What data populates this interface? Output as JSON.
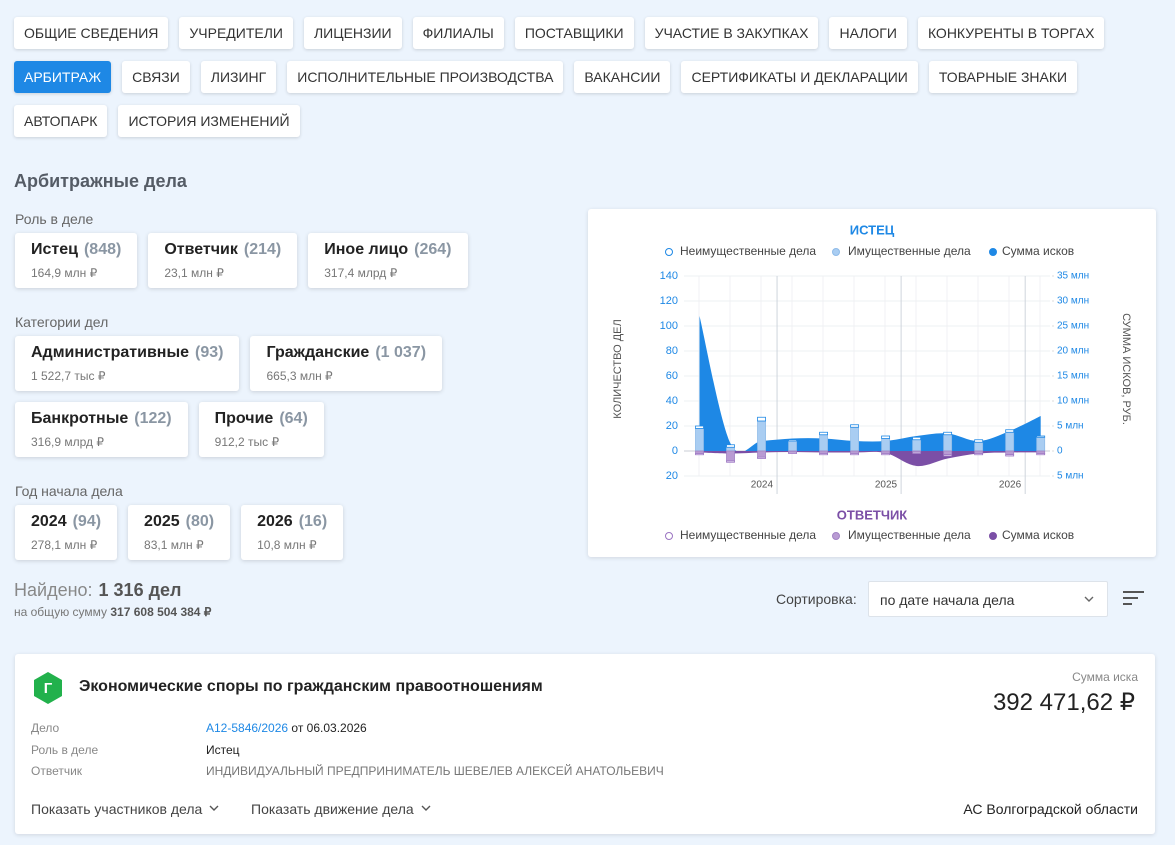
{
  "tabs": [
    "ОБЩИЕ СВЕДЕНИЯ",
    "УЧРЕДИТЕЛИ",
    "ЛИЦЕНЗИИ",
    "ФИЛИАЛЫ",
    "ПОСТАВЩИКИ",
    "УЧАСТИЕ В ЗАКУПКАХ",
    "НАЛОГИ",
    "КОНКУРЕНТЫ В ТОРГАХ",
    "АРБИТРАЖ",
    "СВЯЗИ",
    "ЛИЗИНГ",
    "ИСПОЛНИТЕЛЬНЫЕ ПРОИЗВОДСТВА",
    "ВАКАНСИИ",
    "СЕРТИФИКАТЫ И ДЕКЛАРАЦИИ",
    "ТОВАРНЫЕ ЗНАКИ",
    "АВТОПАРК",
    "ИСТОРИЯ ИЗМЕНЕНИЙ"
  ],
  "active_tab": 8,
  "section_title": "Арбитражные дела",
  "filters": [
    {
      "label": "Роль в деле",
      "items": [
        {
          "name": "Истец",
          "count": "(848)",
          "sum": "164,9 млн ₽"
        },
        {
          "name": "Ответчик",
          "count": "(214)",
          "sum": "23,1 млн ₽"
        },
        {
          "name": "Иное лицо",
          "count": "(264)",
          "sum": "317,4 млрд ₽"
        }
      ]
    },
    {
      "label": "Категории дел",
      "items": [
        {
          "name": "Административные",
          "count": "(93)",
          "sum": "1 522,7 тыс ₽"
        },
        {
          "name": "Гражданские",
          "count": "(1 037)",
          "sum": "665,3 млн ₽"
        },
        {
          "name": "Банкротные",
          "count": "(122)",
          "sum": "316,9 млрд ₽"
        },
        {
          "name": "Прочие",
          "count": "(64)",
          "sum": "912,2 тыс ₽"
        }
      ]
    },
    {
      "label": "Год начала дела",
      "items": [
        {
          "name": "2024",
          "count": "(94)",
          "sum": "278,1 млн ₽"
        },
        {
          "name": "2025",
          "count": "(80)",
          "sum": "83,1 млн ₽"
        },
        {
          "name": "2026",
          "count": "(16)",
          "sum": "10,8 млн ₽"
        }
      ]
    }
  ],
  "chart": {
    "type": "bar",
    "y_label": "КОЛИЧЕСТВО ДЕЛ",
    "y2_label": "СУММА ИСКОВ, РУБ.",
    "x": [
      2023.375,
      2023.625,
      2023.875,
      2024.125,
      2024.375,
      2024.625,
      2024.875,
      2025.125,
      2025.375,
      2025.625,
      2025.875,
      2026.125
    ],
    "xlim": [
      2023.25,
      2026.2
    ],
    "xticks": [
      2024,
      2025,
      2026
    ],
    "ylim": [
      -20,
      140
    ],
    "yticks": [
      140,
      120,
      100,
      80,
      60,
      40,
      20,
      0,
      {
        "value": -20,
        "label": "20"
      }
    ],
    "y2lim": [
      -5,
      35
    ],
    "y2ticks": [
      {
        "value": 35,
        "label": "35 млн"
      },
      {
        "value": 30,
        "label": "30 млн"
      },
      {
        "value": 25,
        "label": "25 млн"
      },
      {
        "value": 20,
        "label": "20 млн"
      },
      {
        "value": 15,
        "label": "15 млн"
      },
      {
        "value": 10,
        "label": "10 млн"
      },
      {
        "value": 5,
        "label": "5 млн"
      },
      0,
      {
        "value": -5,
        "label": "5 млн"
      }
    ],
    "grid": true,
    "groups": [
      {
        "title": "ИСТЕЦ",
        "color": "#1e88e5",
        "series": [
          {
            "name": "Неимущественные дела",
            "color": "#ffffff",
            "stroke": "#1e88e5",
            "values": [
              2,
              2,
              3,
              1,
              2,
              2,
              2,
              2,
              2,
              2,
              2,
              1
            ]
          },
          {
            "name": "Имущественные дела",
            "color": "#a9cdf2",
            "stroke": "#8fbbe8",
            "values": [
              18,
              3,
              24,
              8,
              13,
              19,
              10,
              9,
              13,
              7,
              15,
              11
            ]
          },
          {
            "name": "Сумма исков",
            "color": "#1e88e5",
            "axis": "y2",
            "values": [
              27,
              1.5,
              2,
              2.5,
              2.5,
              2,
              2,
              3,
              3.5,
              2,
              4,
              7
            ]
          }
        ]
      },
      {
        "title": "ОТВЕТЧИК",
        "color": "#7b4fa6",
        "series": [
          {
            "name": "Неимущественные дела",
            "color": "#ffffff",
            "stroke": "#9b74c2",
            "values": [
              -1,
              -1,
              -1,
              -1,
              -1,
              -1,
              -1,
              -1,
              -1,
              -1,
              -1,
              -1
            ]
          },
          {
            "name": "Имущественные дела",
            "color": "#b99bd3",
            "stroke": "#a283c4",
            "values": [
              -2,
              -8,
              -5,
              -1,
              -2,
              -2,
              -2,
              -1,
              -3,
              -2,
              -3,
              -2
            ]
          },
          {
            "name": "Сумма исков",
            "color": "#7b4fa6",
            "axis": "y2",
            "values": [
              -0.3,
              -0.5,
              -0.3,
              -0.2,
              -0.3,
              -0.3,
              -0.4,
              -3,
              -1.5,
              -0.5,
              -0.3,
              -0.3
            ]
          }
        ]
      }
    ]
  },
  "results": {
    "found_label": "Найдено:",
    "found": "1 316 дел",
    "total_label": "на общую сумму",
    "total": "317 608 504 384 ₽",
    "sort_label": "Сортировка:",
    "sort_value": "по дате начала дела"
  },
  "case": {
    "icon": "Г",
    "title": "Экономические споры по гражданским правоотношениям",
    "sum_label": "Сумма иска",
    "sum": "392 471,62 ₽",
    "fields": [
      {
        "label": "Дело",
        "link": "А12-5846/2026",
        "text": "от 06.03.2026"
      },
      {
        "label": "Роль в деле",
        "text": "Истец"
      },
      {
        "label": "Ответчик",
        "text": "ИНДИВИДУАЛЬНЫЙ ПРЕДПРИНИМАТЕЛЬ ШЕВЕЛЕВ АЛЕКСЕЙ АНАТОЛЬЕВИЧ"
      }
    ],
    "actions": [
      "Показать участников дела",
      "Показать движение дела"
    ],
    "court": "АС Волгоградской области"
  }
}
